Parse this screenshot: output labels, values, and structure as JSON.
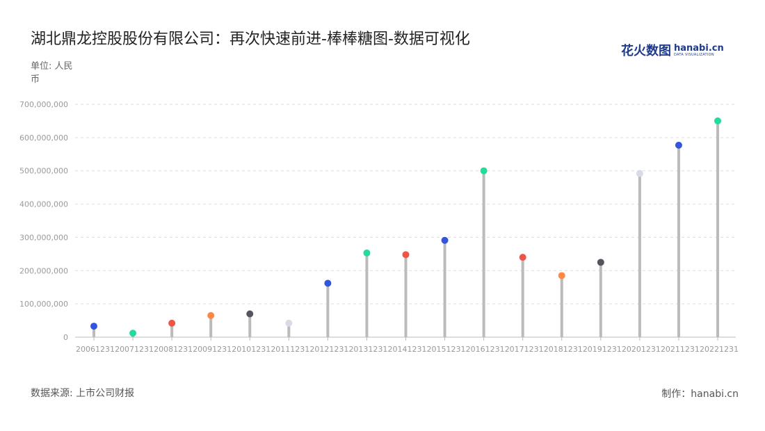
{
  "header": {
    "title": "湖北鼎龙控股股份有限公司：再次快速前进-棒棒糖图-数据可视化",
    "unit": "单位: 人民币"
  },
  "logo": {
    "cn": "花火数图",
    "en": "hanabi.cn",
    "sub": "DATA VISUALIZATION"
  },
  "footer": {
    "source": "数据来源: 上市公司财报",
    "maker": "制作：hanabi.cn"
  },
  "chart_data": {
    "type": "lollipop",
    "categories": [
      "20061231",
      "20071231",
      "20081231",
      "20091231",
      "20101231",
      "20111231",
      "20121231",
      "20131231",
      "20141231",
      "20151231",
      "20161231",
      "20171231",
      "20181231",
      "20191231",
      "20201231",
      "20211231",
      "20221231"
    ],
    "values": [
      33000000,
      12000000,
      42000000,
      65000000,
      70000000,
      42000000,
      162000000,
      253000000,
      248000000,
      291000000,
      500000000,
      240000000,
      185000000,
      225000000,
      492000000,
      577000000,
      650000000
    ],
    "point_colors": [
      "#3355dd",
      "#22dd99",
      "#ee5544",
      "#ff8844",
      "#555560",
      "#d8dbe6",
      "#3355dd",
      "#22dd99",
      "#ee5544",
      "#3355dd",
      "#22dd99",
      "#ee5544",
      "#ff8844",
      "#555560",
      "#d8dbe6",
      "#3355dd",
      "#22dd99"
    ],
    "stem_color": "#bbbbbb",
    "grid_color": "#dddddd",
    "ylim": [
      0,
      700000000
    ],
    "y_ticks": [
      0,
      100000000,
      200000000,
      300000000,
      400000000,
      500000000,
      600000000,
      700000000
    ],
    "y_tick_labels": [
      "0",
      "100,000,000",
      "200,000,000",
      "300,000,000",
      "400,000,000",
      "500,000,000",
      "600,000,000",
      "700,000,000"
    ],
    "grid": true,
    "xlabel": "",
    "ylabel": ""
  }
}
